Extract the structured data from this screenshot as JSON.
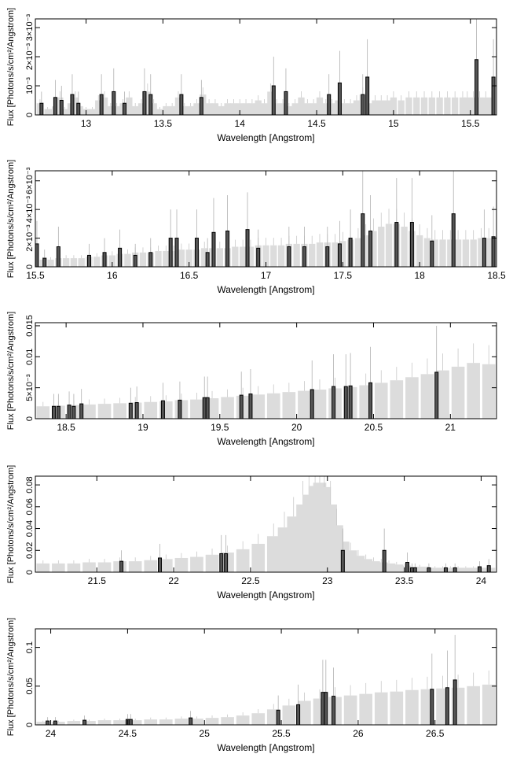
{
  "chart_data": [
    {
      "type": "bar",
      "xlabel": "Wavelength [Angstrom]",
      "ylabel": "Flux [Photons/s/cm²/Angstrom]",
      "xlim": [
        12.67,
        15.67
      ],
      "ylim": [
        0,
        0.0033
      ],
      "x_ticks": [
        {
          "v": 13,
          "label": "13"
        },
        {
          "v": 13.5,
          "label": "13.5"
        },
        {
          "v": 14,
          "label": "14"
        },
        {
          "v": 14.5,
          "label": "14.5"
        },
        {
          "v": 15,
          "label": "15"
        },
        {
          "v": 15.5,
          "label": "15.5"
        }
      ],
      "y_ticks": [
        {
          "v": 0,
          "label": "0"
        },
        {
          "v": 0.001,
          "label": "10⁻³"
        },
        {
          "v": 0.002,
          "label": "2×10⁻³"
        },
        {
          "v": 0.003,
          "label": "3×10⁻³"
        }
      ],
      "x": [
        12.7,
        12.75,
        12.78,
        12.8,
        12.83,
        12.86,
        12.9,
        12.93,
        12.96,
        13.0,
        13.04,
        13.08,
        13.12,
        13.16,
        13.2,
        13.24,
        13.28,
        13.32,
        13.36,
        13.4,
        13.44,
        13.48,
        13.52,
        13.56,
        13.6,
        13.64,
        13.68,
        13.72,
        13.76,
        13.8,
        13.84,
        13.88,
        13.92,
        13.96,
        14.0,
        14.04,
        14.08,
        14.12,
        14.16,
        14.2,
        14.24,
        14.28,
        14.32,
        14.36,
        14.4,
        14.44,
        14.48,
        14.52,
        14.56,
        14.6,
        14.64,
        14.68,
        14.72,
        14.76,
        14.8,
        14.84,
        14.88,
        14.92,
        14.96,
        15.0,
        15.05,
        15.1,
        15.15,
        15.2,
        15.25,
        15.3,
        15.35,
        15.4,
        15.45,
        15.48,
        15.52,
        15.56,
        15.6,
        15.64
      ],
      "values": [
        0.0004,
        0.0002,
        0.0002,
        0.0003,
        0.0006,
        0.0002,
        0.0004,
        0.0006,
        0.0003,
        0.0002,
        0.0002,
        0.0005,
        0.0006,
        0.0003,
        0.0003,
        0.0004,
        0.0006,
        0.0003,
        0.0004,
        0.0008,
        0.0004,
        0.0002,
        0.0003,
        0.0003,
        0.0006,
        0.0003,
        0.0003,
        0.0004,
        0.0007,
        0.0004,
        0.0004,
        0.0003,
        0.0004,
        0.0004,
        0.0004,
        0.0004,
        0.0004,
        0.0005,
        0.0004,
        0.0008,
        0.0004,
        0.0004,
        0.0003,
        0.0004,
        0.0006,
        0.0004,
        0.0004,
        0.0006,
        0.0004,
        0.0004,
        0.0005,
        0.0004,
        0.0004,
        0.0005,
        0.0007,
        0.0004,
        0.0005,
        0.0005,
        0.0005,
        0.0006,
        0.0005,
        0.0006,
        0.0006,
        0.0006,
        0.0006,
        0.0006,
        0.0006,
        0.0006,
        0.0006,
        0.0006,
        0.0006,
        0.0006,
        0.0006,
        0.0006
      ],
      "highlight_x": [
        12.71,
        12.8,
        12.84,
        12.91,
        12.95,
        13.1,
        13.18,
        13.25,
        13.38,
        13.42,
        13.62,
        13.75,
        14.22,
        14.3,
        14.58,
        14.65,
        14.8,
        14.83,
        15.54,
        15.65
      ],
      "highlight_values": [
        0.0004,
        0.0006,
        0.0005,
        0.0007,
        0.0004,
        0.0007,
        0.0008,
        0.0004,
        0.0008,
        0.0007,
        0.0007,
        0.0006,
        0.001,
        0.0008,
        0.0007,
        0.0011,
        0.0007,
        0.0013,
        0.0019,
        0.0013
      ]
    },
    {
      "type": "bar",
      "xlabel": "Wavelength [Angstrom]",
      "ylabel": "Flux [Photons/s/cm²/Angstrom]",
      "xlim": [
        15.5,
        18.5
      ],
      "ylim": [
        0,
        0.0067
      ],
      "x_ticks": [
        {
          "v": 15.5,
          "label": "15.5"
        },
        {
          "v": 16,
          "label": "16"
        },
        {
          "v": 16.5,
          "label": "16.5"
        },
        {
          "v": 17,
          "label": "17"
        },
        {
          "v": 17.5,
          "label": "17.5"
        },
        {
          "v": 18,
          "label": "18"
        },
        {
          "v": 18.5,
          "label": "18.5"
        }
      ],
      "y_ticks": [
        {
          "v": 0,
          "label": "0"
        },
        {
          "v": 0.002,
          "label": "2×10⁻³"
        },
        {
          "v": 0.004,
          "label": "4×10⁻³"
        },
        {
          "v": 0.006,
          "label": "6×10⁻³"
        }
      ],
      "x": [
        15.5,
        15.55,
        15.6,
        15.65,
        15.7,
        15.75,
        15.8,
        15.85,
        15.9,
        15.95,
        16.0,
        16.05,
        16.1,
        16.15,
        16.2,
        16.25,
        16.3,
        16.35,
        16.4,
        16.45,
        16.5,
        16.55,
        16.6,
        16.65,
        16.7,
        16.75,
        16.8,
        16.85,
        16.9,
        16.95,
        17.0,
        17.05,
        17.1,
        17.15,
        17.2,
        17.25,
        17.3,
        17.35,
        17.4,
        17.45,
        17.5,
        17.55,
        17.6,
        17.65,
        17.7,
        17.75,
        17.8,
        17.85,
        17.9,
        17.95,
        18.0,
        18.05,
        18.1,
        18.15,
        18.2,
        18.25,
        18.3,
        18.35,
        18.4,
        18.45,
        18.5
      ],
      "values": [
        0.0005,
        0.0005,
        0.0005,
        0.0006,
        0.0006,
        0.0006,
        0.0006,
        0.0007,
        0.0007,
        0.0008,
        0.0008,
        0.0009,
        0.0009,
        0.001,
        0.001,
        0.001,
        0.0011,
        0.0011,
        0.0011,
        0.0012,
        0.0012,
        0.0012,
        0.0013,
        0.0013,
        0.0013,
        0.0013,
        0.0014,
        0.0014,
        0.0014,
        0.0015,
        0.0015,
        0.0015,
        0.0015,
        0.0016,
        0.0016,
        0.0016,
        0.0016,
        0.0017,
        0.0017,
        0.0017,
        0.0018,
        0.0019,
        0.002,
        0.0022,
        0.0025,
        0.0028,
        0.003,
        0.003,
        0.0028,
        0.0025,
        0.0022,
        0.002,
        0.0019,
        0.0019,
        0.0019,
        0.0019,
        0.0019,
        0.0019,
        0.002,
        0.002,
        0.002
      ],
      "highlight_x": [
        15.51,
        15.56,
        15.65,
        15.85,
        15.95,
        16.05,
        16.15,
        16.25,
        16.38,
        16.42,
        16.55,
        16.62,
        16.66,
        16.75,
        16.88,
        16.95,
        17.15,
        17.25,
        17.4,
        17.48,
        17.55,
        17.63,
        17.68,
        17.85,
        17.95,
        18.08,
        18.22,
        18.42,
        18.48
      ],
      "highlight_values": [
        0.0016,
        0.0006,
        0.0014,
        0.0008,
        0.001,
        0.0013,
        0.0008,
        0.001,
        0.002,
        0.002,
        0.002,
        0.001,
        0.0024,
        0.0025,
        0.0026,
        0.0013,
        0.0014,
        0.0014,
        0.0014,
        0.0016,
        0.002,
        0.0037,
        0.0025,
        0.0031,
        0.0031,
        0.0018,
        0.0037,
        0.002,
        0.0021
      ]
    },
    {
      "type": "bar",
      "xlabel": "Wavelength [Angstrom]",
      "ylabel": "Flux [Photons/s/cm²/Angstrom]",
      "xlim": [
        18.3,
        21.3
      ],
      "ylim": [
        0,
        0.0155
      ],
      "x_ticks": [
        {
          "v": 18.5,
          "label": "18.5"
        },
        {
          "v": 19,
          "label": "19"
        },
        {
          "v": 19.5,
          "label": "19.5"
        },
        {
          "v": 20,
          "label": "20"
        },
        {
          "v": 20.5,
          "label": "20.5"
        },
        {
          "v": 21,
          "label": "21"
        }
      ],
      "y_ticks": [
        {
          "v": 0,
          "label": "0"
        },
        {
          "v": 0.005,
          "label": "5×10⁻³"
        },
        {
          "v": 0.01,
          "label": "0.01"
        },
        {
          "v": 0.015,
          "label": "0.015"
        }
      ],
      "x": [
        18.35,
        18.45,
        18.55,
        18.65,
        18.75,
        18.85,
        18.95,
        19.05,
        19.15,
        19.25,
        19.35,
        19.45,
        19.55,
        19.65,
        19.75,
        19.85,
        19.95,
        20.05,
        20.15,
        20.25,
        20.35,
        20.45,
        20.55,
        20.65,
        20.75,
        20.85,
        20.95,
        21.05,
        21.15,
        21.25
      ],
      "values": [
        0.002,
        0.0021,
        0.0022,
        0.0023,
        0.0024,
        0.0025,
        0.0026,
        0.0027,
        0.0028,
        0.003,
        0.0031,
        0.0033,
        0.0035,
        0.0037,
        0.0039,
        0.0041,
        0.0043,
        0.0045,
        0.0047,
        0.0049,
        0.0051,
        0.0054,
        0.0058,
        0.0062,
        0.0067,
        0.0072,
        0.0078,
        0.0084,
        0.009,
        0.0088
      ],
      "highlight_x": [
        18.42,
        18.45,
        18.52,
        18.55,
        18.6,
        18.92,
        18.96,
        19.13,
        19.24,
        19.4,
        19.42,
        19.64,
        19.7,
        20.1,
        20.24,
        20.32,
        20.35,
        20.48,
        20.91
      ],
      "highlight_values": [
        0.002,
        0.002,
        0.0022,
        0.002,
        0.0024,
        0.0025,
        0.0026,
        0.0029,
        0.003,
        0.0034,
        0.0034,
        0.0038,
        0.004,
        0.0047,
        0.0052,
        0.0052,
        0.0053,
        0.0058,
        0.0075
      ]
    },
    {
      "type": "bar",
      "xlabel": "Wavelength [Angstrom]",
      "ylabel": "Flux [Photons/s/cm²/Angstrom]",
      "xlim": [
        21.1,
        24.1
      ],
      "ylim": [
        0,
        0.088
      ],
      "x_ticks": [
        {
          "v": 21.5,
          "label": "21.5"
        },
        {
          "v": 22,
          "label": "22"
        },
        {
          "v": 22.5,
          "label": "22.5"
        },
        {
          "v": 23,
          "label": "23"
        },
        {
          "v": 23.5,
          "label": "23.5"
        },
        {
          "v": 24,
          "label": "24"
        }
      ],
      "y_ticks": [
        {
          "v": 0,
          "label": "0"
        },
        {
          "v": 0.02,
          "label": "0.02"
        },
        {
          "v": 0.04,
          "label": "0.04"
        },
        {
          "v": 0.06,
          "label": "0.06"
        },
        {
          "v": 0.08,
          "label": "0.08"
        }
      ],
      "x": [
        21.15,
        21.25,
        21.35,
        21.45,
        21.55,
        21.65,
        21.75,
        21.85,
        21.95,
        22.05,
        22.15,
        22.25,
        22.35,
        22.45,
        22.55,
        22.65,
        22.72,
        22.78,
        22.84,
        22.88,
        22.92,
        22.95,
        22.98,
        23.02,
        23.06,
        23.1,
        23.15,
        23.2,
        23.25,
        23.3,
        23.35,
        23.4,
        23.45,
        23.5,
        23.55,
        23.6,
        23.65,
        23.7,
        23.75,
        23.8,
        23.85,
        23.9,
        23.95,
        24.0,
        24.05
      ],
      "values": [
        0.008,
        0.008,
        0.008,
        0.009,
        0.009,
        0.01,
        0.01,
        0.011,
        0.012,
        0.013,
        0.014,
        0.016,
        0.018,
        0.021,
        0.026,
        0.033,
        0.041,
        0.051,
        0.062,
        0.071,
        0.079,
        0.082,
        0.078,
        0.062,
        0.043,
        0.028,
        0.02,
        0.015,
        0.012,
        0.01,
        0.009,
        0.008,
        0.007,
        0.006,
        0.005,
        0.005,
        0.004,
        0.004,
        0.004,
        0.004,
        0.004,
        0.004,
        0.004,
        0.004,
        0.004
      ],
      "highlight_x": [
        21.66,
        21.91,
        22.31,
        22.34,
        23.1,
        23.37,
        23.52,
        23.55,
        23.57,
        23.66,
        23.77,
        23.83,
        23.99,
        24.05
      ],
      "highlight_values": [
        0.01,
        0.013,
        0.017,
        0.017,
        0.02,
        0.02,
        0.009,
        0.004,
        0.004,
        0.004,
        0.004,
        0.004,
        0.005,
        0.006
      ]
    },
    {
      "type": "bar",
      "xlabel": "Wavelength [Angstrom]",
      "ylabel": "Flux [Photons/s/cm²/Angstrom]",
      "xlim": [
        23.9,
        26.9
      ],
      "ylim": [
        0,
        0.124
      ],
      "x_ticks": [
        {
          "v": 24,
          "label": "24"
        },
        {
          "v": 24.5,
          "label": "24.5"
        },
        {
          "v": 25,
          "label": "25"
        },
        {
          "v": 25.5,
          "label": "25.5"
        },
        {
          "v": 26,
          "label": "26"
        },
        {
          "v": 26.5,
          "label": "26.5"
        }
      ],
      "y_ticks": [
        {
          "v": 0,
          "label": "0"
        },
        {
          "v": 0.05,
          "label": "0.05"
        },
        {
          "v": 0.1,
          "label": "0.1"
        }
      ],
      "x": [
        23.95,
        24.05,
        24.15,
        24.25,
        24.35,
        24.45,
        24.55,
        24.65,
        24.75,
        24.85,
        24.95,
        25.05,
        25.15,
        25.25,
        25.35,
        25.45,
        25.55,
        25.65,
        25.75,
        25.85,
        25.95,
        26.05,
        26.15,
        26.25,
        26.35,
        26.45,
        26.55,
        26.65,
        26.75,
        26.85
      ],
      "values": [
        0.004,
        0.004,
        0.005,
        0.005,
        0.006,
        0.006,
        0.006,
        0.007,
        0.007,
        0.008,
        0.008,
        0.009,
        0.01,
        0.012,
        0.015,
        0.02,
        0.025,
        0.031,
        0.034,
        0.036,
        0.038,
        0.04,
        0.042,
        0.043,
        0.045,
        0.046,
        0.047,
        0.048,
        0.05,
        0.052
      ],
      "highlight_x": [
        23.98,
        24.03,
        24.22,
        24.5,
        24.52,
        24.91,
        25.48,
        25.61,
        25.77,
        25.79,
        25.84,
        26.48,
        26.58,
        26.63
      ],
      "highlight_values": [
        0.005,
        0.005,
        0.006,
        0.007,
        0.007,
        0.009,
        0.019,
        0.026,
        0.042,
        0.042,
        0.037,
        0.046,
        0.048,
        0.058
      ]
    }
  ]
}
